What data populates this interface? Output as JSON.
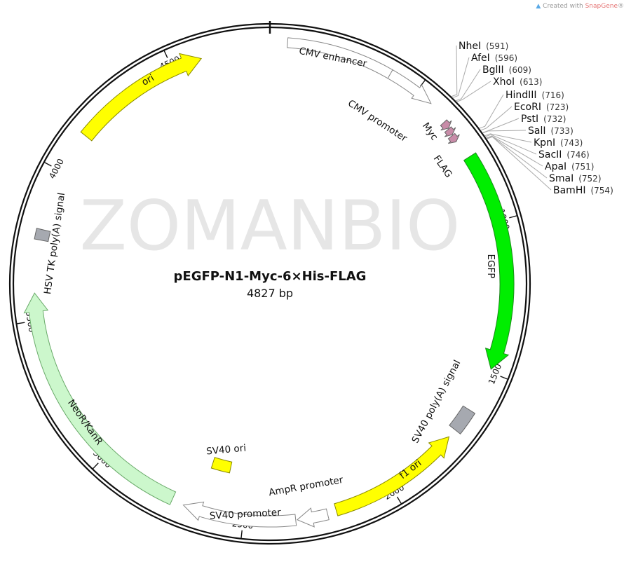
{
  "plasmid": {
    "name": "pEGFP-N1-Myc-6×His-FLAG",
    "size_label": "4827 bp",
    "length": 4827
  },
  "watermark": "ZOMANBIO",
  "credit": {
    "prefix": "Created with ",
    "brand": "SnapGene",
    "suffix": "®"
  },
  "ticks": [
    "500",
    "1000",
    "1500",
    "2000",
    "2500",
    "3000",
    "3500",
    "4000",
    "4500"
  ],
  "features": [
    {
      "name": "CMV enhancer",
      "start": 56,
      "end": 400,
      "direction": "none",
      "shape": "box",
      "color": "#ffffff"
    },
    {
      "name": "CMV promoter",
      "start": 400,
      "end": 560,
      "direction": "forward",
      "shape": "arrow",
      "color": "#ffffff"
    },
    {
      "name": "Myc",
      "start": 632,
      "end": 656,
      "direction": "forward",
      "shape": "arrow",
      "color": "#c88ca8"
    },
    {
      "name": "His",
      "start": 658,
      "end": 680,
      "direction": "forward",
      "shape": "arrow",
      "color": "#c88ca8"
    },
    {
      "name": "FLAG",
      "start": 682,
      "end": 706,
      "direction": "forward",
      "shape": "arrow",
      "color": "#c88ca8"
    },
    {
      "name": "EGFP",
      "start": 771,
      "end": 1490,
      "direction": "forward",
      "shape": "arrow",
      "color": "#00ee00"
    },
    {
      "name": "SV40 poly(A) signal",
      "start": 1640,
      "end": 1720,
      "direction": "none",
      "shape": "box",
      "color": "#a6a9b0"
    },
    {
      "name": "f1 ori",
      "start": 1750,
      "end": 2195,
      "direction": "reverse",
      "shape": "arrow",
      "color": "#ffff00"
    },
    {
      "name": "AmpR promoter",
      "start": 2225,
      "end": 2325,
      "direction": "forward",
      "shape": "arrow",
      "color": "#ffffff"
    },
    {
      "name": "SV40 promoter",
      "start": 2330,
      "end": 2700,
      "direction": "forward",
      "shape": "arrow",
      "color": "#ffffff"
    },
    {
      "name": "SV40 ori",
      "start": 2575,
      "end": 2650,
      "direction": "none",
      "shape": "box",
      "color": "#ffff00"
    },
    {
      "name": "NeoR/KanR",
      "start": 2740,
      "end": 3590,
      "direction": "forward",
      "shape": "arrow",
      "color": "#ccf7cc"
    },
    {
      "name": "HSV TK poly(A) signal",
      "start": 3765,
      "end": 3800,
      "direction": "none",
      "shape": "box",
      "color": "#a6a9b0"
    },
    {
      "name": "ori",
      "start": 4140,
      "end": 4600,
      "direction": "forward",
      "shape": "arrow",
      "color": "#ffff00"
    }
  ],
  "sites": [
    {
      "name": "NheI",
      "pos": "(591)",
      "bp": 591
    },
    {
      "name": "AfeI",
      "pos": "(596)",
      "bp": 596
    },
    {
      "name": "BglII",
      "pos": "(609)",
      "bp": 609
    },
    {
      "name": "XhoI",
      "pos": "(613)",
      "bp": 613
    },
    {
      "name": "HindIII",
      "pos": "(716)",
      "bp": 716
    },
    {
      "name": "EcoRI",
      "pos": "(723)",
      "bp": 723
    },
    {
      "name": "PstI",
      "pos": "(732)",
      "bp": 732
    },
    {
      "name": "SalI",
      "pos": "(733)",
      "bp": 733
    },
    {
      "name": "KpnI",
      "pos": "(743)",
      "bp": 743
    },
    {
      "name": "SacII",
      "pos": "(746)",
      "bp": 746
    },
    {
      "name": "ApaI",
      "pos": "(751)",
      "bp": 751
    },
    {
      "name": "SmaI",
      "pos": "(752)",
      "bp": 752
    },
    {
      "name": "BamHI",
      "pos": "(754)",
      "bp": 754
    }
  ]
}
